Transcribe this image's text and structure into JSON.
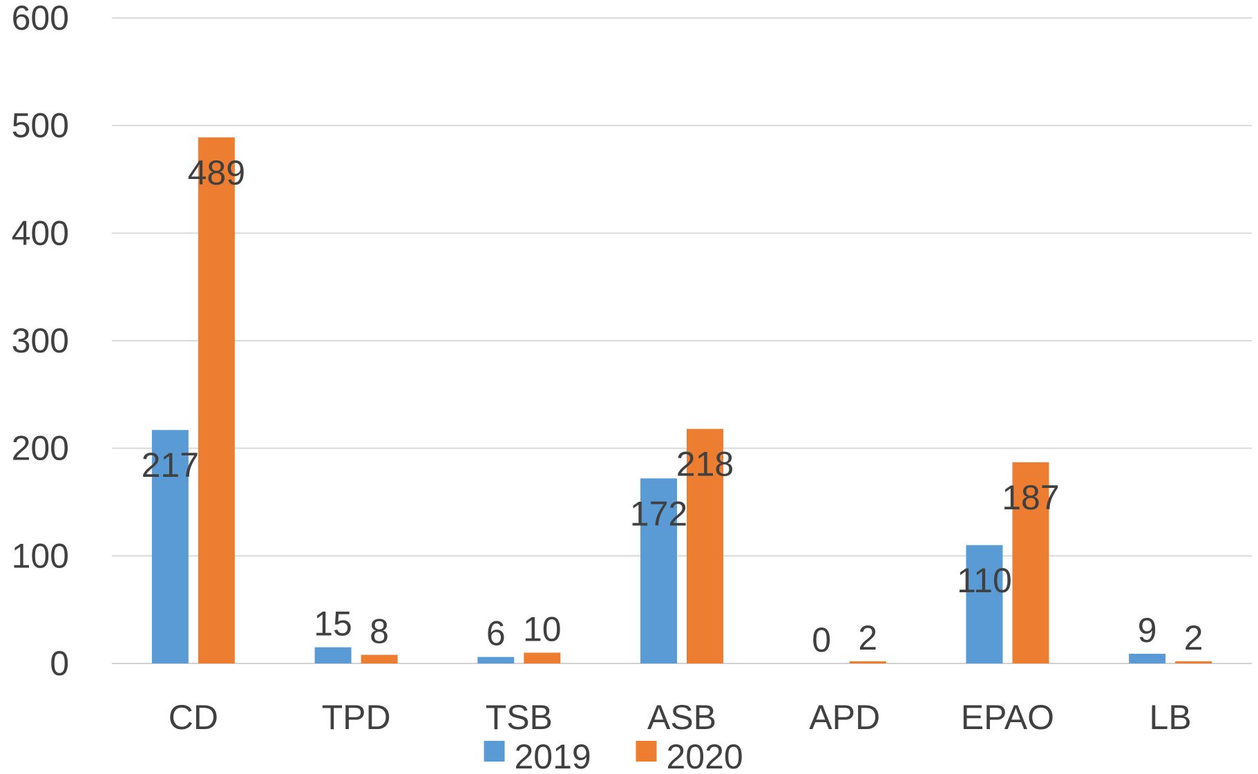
{
  "chart_data": {
    "type": "bar",
    "title": "",
    "xlabel": "",
    "ylabel": "",
    "categories": [
      "CD",
      "TPD",
      "TSB",
      "ASB",
      "APD",
      "EPAO",
      "LB"
    ],
    "series": [
      {
        "name": "2019",
        "color": "#5b9bd5",
        "values": [
          217,
          15,
          6,
          172,
          0,
          110,
          9
        ]
      },
      {
        "name": "2020",
        "color": "#ed7d31",
        "values": [
          489,
          8,
          10,
          218,
          2,
          187,
          2
        ]
      }
    ],
    "ylim": [
      0,
      600
    ],
    "yticks": [
      0,
      100,
      200,
      300,
      400,
      500,
      600
    ],
    "grid": true,
    "legend_position": "bottom"
  }
}
